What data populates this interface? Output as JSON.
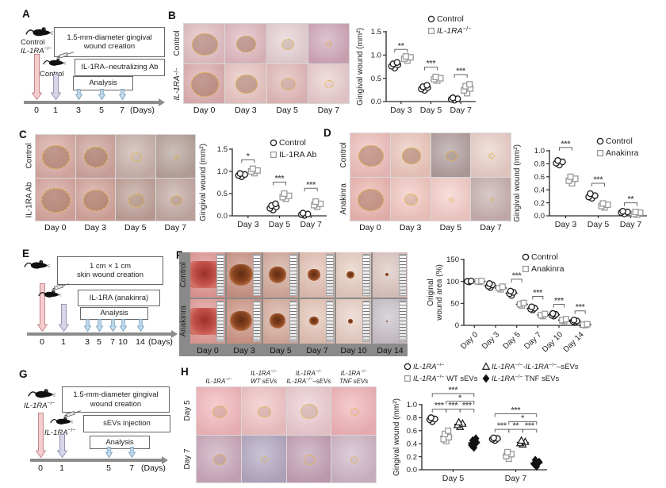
{
  "panels": {
    "a": {
      "label": "A",
      "mouse1_label": "Control\n_IL-1RA_^{−/−}",
      "mouse2_label": "Control",
      "boxes": [
        "1.5-mm-diameter gingival\nwound creation",
        "IL-1RA–neutralizing Ab",
        "Analysis"
      ],
      "ticks": [
        "0",
        "1",
        "3",
        "5",
        "7"
      ],
      "suffix": "(Days)"
    },
    "b": {
      "label": "B",
      "grid": {
        "row_labels": [
          "Control",
          "_IL-1RA_^{−/−}"
        ],
        "day_labels": [
          "Day 0",
          "Day 3",
          "Day 5",
          "Day 7"
        ],
        "cells": [
          [
            {
              "bg": "#e2c2c6",
              "w": 0.62
            },
            {
              "bg": "#dfbcc2",
              "w": 0.46
            },
            {
              "bg": "#e6d4d6",
              "w": 0.28
            },
            {
              "bg": "#cfa9ba",
              "w": 0.12
            }
          ],
          [
            {
              "bg": "#deb2b2",
              "w": 0.68
            },
            {
              "bg": "#e9c9c5",
              "w": 0.52
            },
            {
              "bg": "#e2bcbc",
              "w": 0.34
            },
            {
              "bg": "#ead0d0",
              "w": 0.2
            }
          ]
        ]
      },
      "chart": {
        "type": "scatter",
        "ylabel": "Gingival wound (mm²)",
        "ylim": [
          0,
          1.5
        ],
        "yticks": [
          0,
          0.5,
          1,
          1.5
        ],
        "ytick_labels": [
          "0.0",
          "0.5",
          "1.0",
          "1.5"
        ],
        "categories": [
          "Day 3",
          "Day 5",
          "Day 7"
        ],
        "series": [
          {
            "name": "Control",
            "marker": "circle",
            "open": true,
            "color": "#1a1a1a",
            "values": [
              [
                0.72,
                0.76,
                0.79,
                0.81,
                0.84
              ],
              [
                0.24,
                0.27,
                0.3,
                0.32,
                0.35
              ],
              [
                0.03,
                0.05,
                0.06,
                0.08
              ]
            ]
          },
          {
            "name": "_IL-1RA_^{−/−}",
            "marker": "square",
            "open": true,
            "color": "#999999",
            "values": [
              [
                0.88,
                0.92,
                0.95,
                0.97
              ],
              [
                0.45,
                0.48,
                0.5,
                0.53
              ],
              [
                0.18,
                0.24,
                0.28,
                0.33,
                0.37
              ]
            ]
          }
        ],
        "sig": [
          {
            "cat": 0,
            "from": 0,
            "to": 1,
            "y": 1.12,
            "label": "**"
          },
          {
            "cat": 1,
            "from": 0,
            "to": 1,
            "y": 0.74,
            "label": "***"
          },
          {
            "cat": 2,
            "from": 0,
            "to": 1,
            "y": 0.58,
            "label": "***"
          }
        ]
      }
    },
    "c": {
      "label": "C",
      "grid": {
        "row_labels": [
          "Control",
          "IL-1RA Ab"
        ],
        "day_labels": [
          "Day 0",
          "Day 3",
          "Day 5",
          "Day 7"
        ],
        "cells": [
          [
            {
              "bg": "#d9aea6",
              "w": 0.66
            },
            {
              "bg": "#cda69e",
              "w": 0.56
            },
            {
              "bg": "#c8b3ab",
              "w": 0.24
            },
            {
              "bg": "#b5a49b",
              "w": 0.1
            }
          ],
          [
            {
              "bg": "#d6a8a0",
              "w": 0.7
            },
            {
              "bg": "#d2a69c",
              "w": 0.6
            },
            {
              "bg": "#bda298",
              "w": 0.36
            },
            {
              "bg": "#c2aba4",
              "w": 0.26
            }
          ]
        ]
      },
      "chart": {
        "type": "scatter",
        "ylabel": "Gingival wound (mm²)",
        "ylim": [
          0,
          1.5
        ],
        "yticks": [
          0,
          0.5,
          1,
          1.5
        ],
        "ytick_labels": [
          "0.0",
          "0.5",
          "1.0",
          "1.5"
        ],
        "categories": [
          "Day 3",
          "Day 5",
          "Day 7"
        ],
        "series": [
          {
            "name": "Control",
            "marker": "circle",
            "open": true,
            "color": "#1a1a1a",
            "values": [
              [
                0.88,
                0.91,
                0.93,
                0.95
              ],
              [
                0.13,
                0.17,
                0.2,
                0.23,
                0.27
              ],
              [
                0.01,
                0.03,
                0.04,
                0.06
              ]
            ]
          },
          {
            "name": "IL-1RA Ab",
            "marker": "square",
            "open": true,
            "color": "#999999",
            "values": [
              [
                0.96,
                1.0,
                1.02,
                1.06
              ],
              [
                0.38,
                0.42,
                0.45,
                0.5
              ],
              [
                0.2,
                0.24,
                0.27,
                0.32
              ]
            ]
          }
        ],
        "sig": [
          {
            "cat": 0,
            "from": 0,
            "to": 1,
            "y": 1.26,
            "label": "*"
          },
          {
            "cat": 1,
            "from": 0,
            "to": 1,
            "y": 0.76,
            "label": "***"
          },
          {
            "cat": 2,
            "from": 0,
            "to": 1,
            "y": 0.62,
            "label": "***"
          }
        ]
      }
    },
    "d": {
      "label": "D",
      "grid": {
        "row_labels": [
          "Control",
          "Anakinra"
        ],
        "day_labels": [
          "Day 0",
          "Day 3",
          "Day 5",
          "Day 7"
        ],
        "cells": [
          [
            {
              "bg": "#eec2bd",
              "w": 0.6
            },
            {
              "bg": "#eccabe",
              "w": 0.44
            },
            {
              "bg": "#b0a0a0",
              "w": 0.26
            },
            {
              "bg": "#ead2ca",
              "w": 0.12
            }
          ],
          [
            {
              "bg": "#ecb8b2",
              "w": 0.62
            },
            {
              "bg": "#f2cac2",
              "w": 0.3
            },
            {
              "bg": "#f4d0ca",
              "w": 0.1
            },
            {
              "bg": "#c6b2b0",
              "w": 0.06
            }
          ]
        ]
      },
      "chart": {
        "type": "scatter",
        "ylabel": "Gingival wound (mm²)",
        "ylim": [
          0,
          1
        ],
        "yticks": [
          0,
          0.2,
          0.4,
          0.6,
          0.8,
          1
        ],
        "ytick_labels": [
          "0.0",
          "0.2",
          "0.4",
          "0.6",
          "0.8",
          "1.0"
        ],
        "categories": [
          "Day 3",
          "Day 5",
          "Day 7"
        ],
        "series": [
          {
            "name": "Control",
            "marker": "circle",
            "open": true,
            "color": "#1a1a1a",
            "values": [
              [
                0.78,
                0.81,
                0.83,
                0.85
              ],
              [
                0.27,
                0.29,
                0.31,
                0.34
              ],
              [
                0.03,
                0.05,
                0.06,
                0.07
              ]
            ]
          },
          {
            "name": "Anakinra",
            "marker": "square",
            "open": true,
            "color": "#999999",
            "values": [
              [
                0.5,
                0.54,
                0.57,
                0.6
              ],
              [
                0.13,
                0.15,
                0.17,
                0.19
              ],
              [
                0.02,
                0.03,
                0.05,
                0.06
              ]
            ]
          }
        ],
        "sig": [
          {
            "cat": 0,
            "from": 0,
            "to": 1,
            "y": 1.05,
            "label": "***"
          },
          {
            "cat": 1,
            "from": 0,
            "to": 1,
            "y": 0.5,
            "label": "***"
          },
          {
            "cat": 2,
            "from": 0,
            "to": 1,
            "y": 0.2,
            "label": "**"
          }
        ]
      }
    },
    "e": {
      "label": "E",
      "boxes": [
        "1 cm × 1 cm\nskin wound creation",
        "IL-1RA (anakinra)",
        "Analysis"
      ],
      "ticks": [
        "0",
        "1",
        "3",
        "5",
        "7",
        "10",
        "14"
      ],
      "suffix": "(Days)"
    },
    "f": {
      "label": "F",
      "grid": {
        "row_labels": [
          "Control",
          "Anakinra"
        ],
        "day_labels": [
          "Day 0",
          "Day 3",
          "Day 5",
          "Day 7",
          "Day 10",
          "Day 14"
        ],
        "cells": [
          [
            {
              "bg": "#e09a96",
              "w": 0.85,
              "sq": true
            },
            {
              "bg": "#c89484",
              "w": 0.66
            },
            {
              "bg": "#d2ac9c",
              "w": 0.52
            },
            {
              "bg": "#e2c2b4",
              "w": 0.36
            },
            {
              "bg": "#e6d0c2",
              "w": 0.22
            },
            {
              "bg": "#dcc8c2",
              "w": 0.1
            }
          ],
          [
            {
              "bg": "#e2a09a",
              "w": 0.85,
              "sq": true
            },
            {
              "bg": "#cc9886",
              "w": 0.62
            },
            {
              "bg": "#d6b0a0",
              "w": 0.46
            },
            {
              "bg": "#e4c6b8",
              "w": 0.28
            },
            {
              "bg": "#e8d2c6",
              "w": 0.14
            },
            {
              "bg": "#c8c4cc",
              "w": 0.06
            }
          ]
        ]
      },
      "chart": {
        "type": "scatter",
        "ylabel": "Original\nwound area (%)",
        "ylim": [
          0,
          150
        ],
        "yticks": [
          0,
          50,
          100,
          150
        ],
        "ytick_labels": [
          "0",
          "50",
          "100",
          "150"
        ],
        "categories": [
          "Day 0",
          "Day 3",
          "Day 5",
          "Day 7",
          "Day 10",
          "Day 14"
        ],
        "series": [
          {
            "name": "Control",
            "marker": "circle",
            "open": true,
            "color": "#1a1a1a",
            "values": [
              [
                99,
                100,
                101
              ],
              [
                86,
                89,
                92,
                95
              ],
              [
                68,
                72,
                75,
                78
              ],
              [
                35,
                37,
                39,
                42
              ],
              [
                21,
                23,
                25,
                27
              ],
              [
                7,
                9,
                10,
                12
              ]
            ]
          },
          {
            "name": "Anakinra",
            "marker": "square",
            "open": true,
            "color": "#999999",
            "values": [
              [
                99,
                100,
                101
              ],
              [
                82,
                85,
                88
              ],
              [
                45,
                48,
                51
              ],
              [
                21,
                23,
                26
              ],
              [
                10,
                12,
                14
              ],
              [
                0.5,
                1.5,
                2.5
              ]
            ]
          }
        ],
        "sig": [
          {
            "cat": 2,
            "from": 0,
            "to": 1,
            "y": 105,
            "label": "***"
          },
          {
            "cat": 3,
            "from": 0,
            "to": 1,
            "y": 66,
            "label": "***"
          },
          {
            "cat": 4,
            "from": 0,
            "to": 1,
            "y": 48,
            "label": "***"
          },
          {
            "cat": 5,
            "from": 0,
            "to": 1,
            "y": 33,
            "label": "***"
          }
        ]
      }
    },
    "g": {
      "label": "G",
      "mouse1_label": "_IL-1RA_^{−/−}",
      "mouse2_label": "_IL-1RA_^{−/−}",
      "boxes": [
        "1.5-mm-diameter gingival\nwound creation",
        "sEVs injection",
        "Analysis"
      ],
      "ticks": [
        "0",
        "1",
        "5",
        "7"
      ],
      "suffix": "(Days)"
    },
    "h": {
      "label": "H",
      "grid": {
        "row_labels": [
          "Day 5",
          "Day 7"
        ],
        "col_labels": [
          "_IL-1RA_^{−/−}",
          "_IL-1RA_^{−/−}\nWT sEVs",
          "_IL-1RA_^{−/−}\n_IL-1RA_^{−/−}–sEVs",
          "_IL-1RA_^{−/−}\nTNF sEVs"
        ],
        "cells": [
          [
            {
              "bg": "#f2babe",
              "w": 0.3
            },
            {
              "bg": "#f0c6c8",
              "w": 0.26
            },
            {
              "bg": "#eccfd4",
              "w": 0.36
            },
            {
              "bg": "#f0b6ba",
              "w": 0.16
            }
          ],
          [
            {
              "bg": "#c9aabc",
              "w": 0.26
            },
            {
              "bg": "#b2aac4",
              "w": 0.12
            },
            {
              "bg": "#c2a2b6",
              "w": 0.24
            },
            {
              "bg": "#cfb8c8",
              "w": 0.14
            }
          ]
        ]
      },
      "chart": {
        "type": "scatter",
        "ylabel": "Gingival wound (mm²)",
        "ylim": [
          0,
          1
        ],
        "yticks": [
          0,
          0.2,
          0.4,
          0.6,
          0.8,
          1
        ],
        "ytick_labels": [
          "0.0",
          "0.2",
          "0.4",
          "0.6",
          "0.8",
          "1.0"
        ],
        "categories": [
          "Day 5",
          "Day 7"
        ],
        "series": [
          {
            "name": "_IL-1RA_^{−/−}",
            "marker": "circle",
            "open": true,
            "color": "#1a1a1a",
            "values": [
              [
                0.74,
                0.77,
                0.78,
                0.8
              ],
              [
                0.45,
                0.47,
                0.48,
                0.49
              ]
            ]
          },
          {
            "name": "_IL-1RA_^{−/−} WT sEVs",
            "marker": "square",
            "open": true,
            "color": "#999999",
            "values": [
              [
                0.44,
                0.47,
                0.5,
                0.55,
                0.6
              ],
              [
                0.17,
                0.21,
                0.24,
                0.27
              ]
            ]
          },
          {
            "name": "_IL-1RA_^{−/−}-_IL-1RA_^{−/−}–sEVs",
            "marker": "triangle",
            "open": true,
            "color": "#1a1a1a",
            "values": [
              [
                0.66,
                0.69,
                0.71,
                0.73
              ],
              [
                0.39,
                0.41,
                0.43,
                0.45
              ]
            ]
          },
          {
            "name": "_IL-1RA_^{−/−} TNF sEVs",
            "marker": "diamond",
            "open": false,
            "color": "#111111",
            "values": [
              [
                0.34,
                0.38,
                0.42,
                0.45,
                0.48
              ],
              [
                0.05,
                0.09,
                0.12,
                0.15
              ]
            ]
          }
        ],
        "sig": [
          {
            "cat": 0,
            "from": 0,
            "to": 1,
            "y": 0.93,
            "label": "***"
          },
          {
            "cat": 0,
            "from": 1,
            "to": 2,
            "y": 0.93,
            "label": "***"
          },
          {
            "cat": 0,
            "from": 2,
            "to": 3,
            "y": 0.93,
            "label": "***"
          },
          {
            "cat": 0,
            "from": 1,
            "to": 3,
            "y": 1.05,
            "label": "*"
          },
          {
            "cat": 0,
            "from": 0,
            "to": 3,
            "y": 1.17,
            "label": "***"
          },
          {
            "cat": 1,
            "from": 0,
            "to": 1,
            "y": 0.62,
            "label": "***"
          },
          {
            "cat": 1,
            "from": 1,
            "to": 2,
            "y": 0.62,
            "label": "**"
          },
          {
            "cat": 1,
            "from": 2,
            "to": 3,
            "y": 0.62,
            "label": "***"
          },
          {
            "cat": 1,
            "from": 1,
            "to": 3,
            "y": 0.74,
            "label": "*"
          },
          {
            "cat": 1,
            "from": 0,
            "to": 3,
            "y": 0.86,
            "label": "***"
          }
        ]
      }
    }
  }
}
